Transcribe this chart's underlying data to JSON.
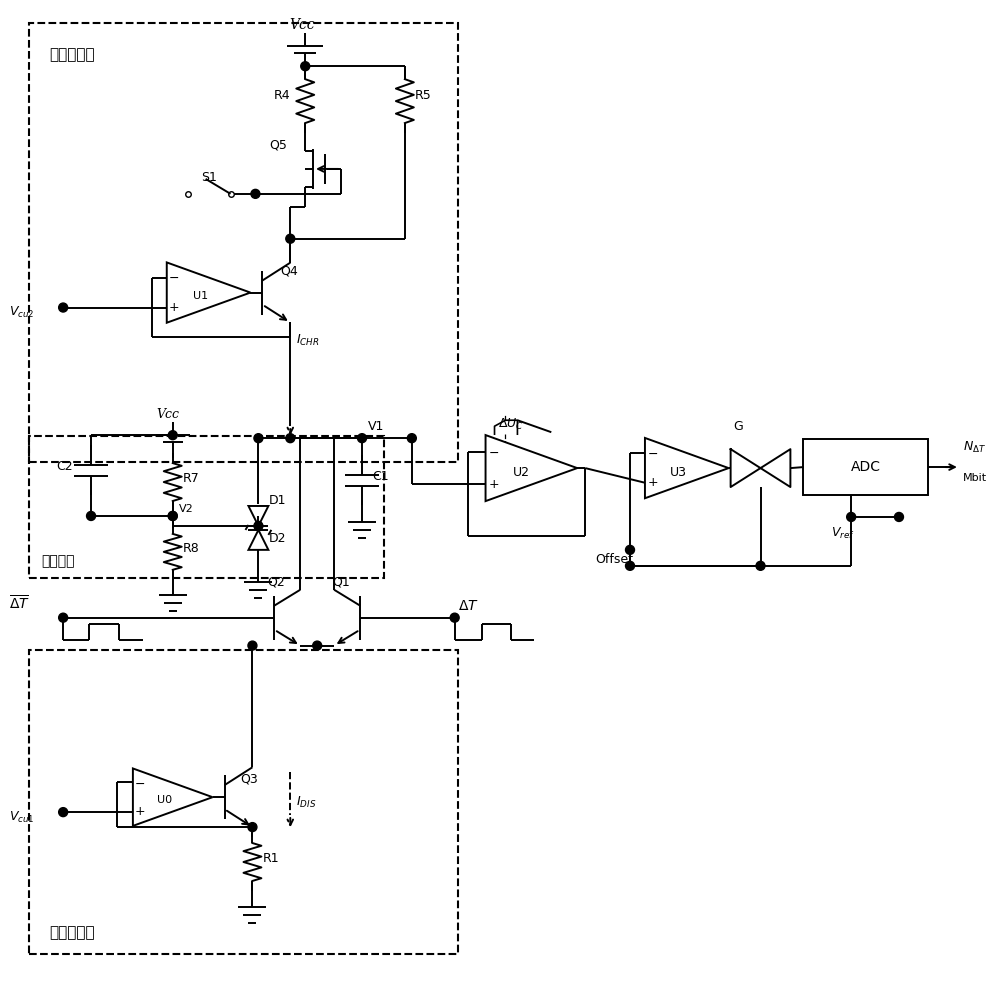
{
  "bg_color": "#ffffff",
  "line_color": "#000000",
  "figsize": [
    9.99,
    10.0
  ],
  "dpi": 100,
  "labels": {
    "charging_box": "充电恒流源",
    "voltage_box": "稳压电路",
    "discharging_box": "放电恒流源",
    "Vcc": "Vcc",
    "R4": "R4",
    "Q5": "Q5",
    "S1": "S1",
    "R5": "R5",
    "U1": "U1",
    "Q4": "Q4",
    "V1": "V1",
    "R7": "R7",
    "D1": "D1",
    "V2": "V2",
    "R8": "R8",
    "C2": "C2",
    "D2": "D2",
    "C1": "C1",
    "U2": "U2",
    "U3": "U3",
    "G": "G",
    "Offset": "Offset",
    "ADC": "ADC",
    "Q2": "Q2",
    "Q1": "Q1",
    "U0": "U0",
    "Q3": "Q3",
    "R1": "R1"
  }
}
